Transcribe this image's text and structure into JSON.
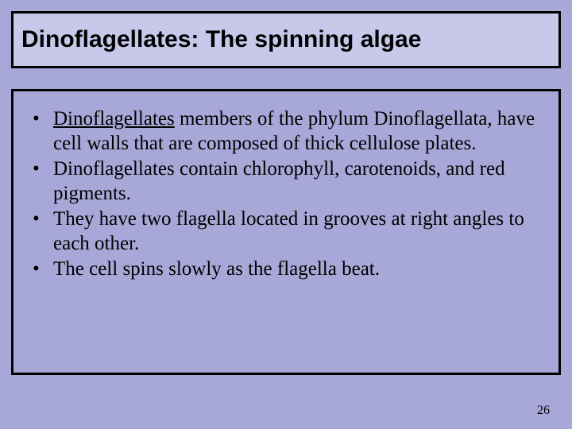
{
  "background_color": "#a8a8d8",
  "title_box": {
    "background_color": "#c8c8eb",
    "border_color": "#000000",
    "text": "Dinoflagellates: The spinning algae",
    "font_size": 30,
    "font_weight": "bold"
  },
  "content_box": {
    "border_color": "#000000",
    "font_family": "Times New Roman",
    "font_size": 25,
    "bullets": [
      {
        "underlined_lead": "Dinoflagellates",
        "rest": " members of the phylum Dinoflagellata, have cell walls that are composed of thick cellulose plates.",
        "lead_space": " "
      },
      {
        "underlined_lead": "",
        "rest": "Dinoflagellates contain chlorophyll, carotenoids, and red pigments.",
        "lead_space": ""
      },
      {
        "underlined_lead": "",
        "rest": "They have two flagella located in grooves at right angles to each other.",
        "lead_space": ""
      },
      {
        "underlined_lead": "",
        "rest": "The cell spins slowly as the flagella beat.",
        "lead_space": " "
      }
    ]
  },
  "page_number": "26"
}
